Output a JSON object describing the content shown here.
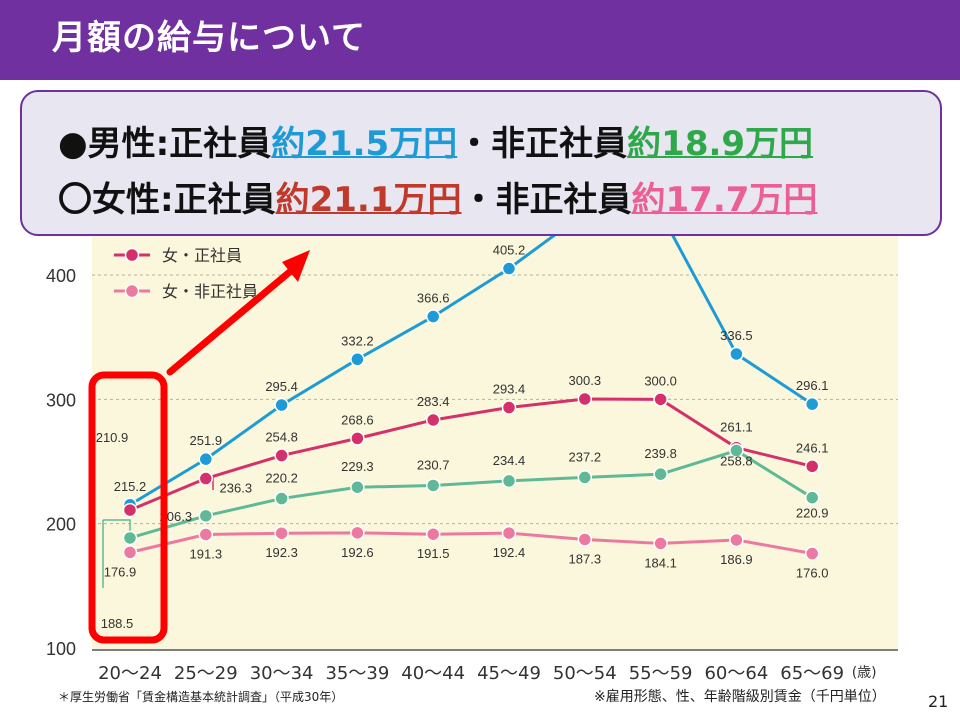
{
  "slide": {
    "title": "月額の給与について",
    "page_number": "21",
    "source_note": "＊厚生労働省「賃金構造基本統計調査」（平成30年）",
    "unit_note": "※雇用形態、性、年齢階級別賃金（千円単位）"
  },
  "callout": {
    "line1": {
      "prefix": "●男性:正社員",
      "value1": "約21.5万円",
      "middle": "・非正社員",
      "value2": "約18.9万円"
    },
    "line2": {
      "prefix": "〇女性:正社員",
      "value1": "約21.1万円",
      "middle": "・非正社員",
      "value2": "約17.7万円"
    }
  },
  "colors": {
    "brand_purple": "#7030A0",
    "male_regular": "#1E9BD7",
    "male_nonregular": "#5FB996",
    "female_regular": "#D4306A",
    "female_nonregular": "#EC7AA0",
    "callout_male_regular_text": "#1E9BD7",
    "callout_male_nonregular_text": "#2EA84A",
    "callout_female_regular_text": "#C0392B",
    "callout_female_nonregular_text": "#EC5F94",
    "highlight_red": "#FF0000",
    "plot_background": "#FBF7DC"
  },
  "chart_data": {
    "type": "line",
    "categories": [
      "20〜24",
      "25〜29",
      "30〜34",
      "35〜39",
      "40〜44",
      "45〜49",
      "50〜54",
      "55〜59",
      "60〜64",
      "65〜69"
    ],
    "x_unit": "(歳)",
    "ylim": [
      100,
      450
    ],
    "yticks": [
      100,
      200,
      300,
      400
    ],
    "grid": true,
    "legend_position": "top-left",
    "series": [
      {
        "name": "",
        "color": "#1E9BD7",
        "values": [
          215.2,
          251.9,
          295.4,
          332.2,
          366.6,
          405.2,
          450.0,
          450.0,
          336.5,
          296.1
        ],
        "labels": [
          "215.2",
          "251.9",
          "295.4",
          "332.2",
          "366.6",
          "405.2",
          "",
          "",
          "336.5",
          "296.1"
        ]
      },
      {
        "name": "女・正社員",
        "color": "#D4306A",
        "values": [
          210.9,
          236.3,
          254.8,
          268.6,
          283.4,
          293.4,
          300.3,
          300.0,
          261.1,
          246.1
        ],
        "labels": [
          "210.9",
          "236.3",
          "254.8",
          "268.6",
          "283.4",
          "293.4",
          "300.3",
          "300.0",
          "261.1",
          "246.1"
        ]
      },
      {
        "name": "",
        "color": "#5FB996",
        "values": [
          188.5,
          206.3,
          220.2,
          229.3,
          230.7,
          234.4,
          237.2,
          239.8,
          258.8,
          220.9
        ],
        "labels": [
          "188.5",
          "206.3",
          "220.2",
          "229.3",
          "230.7",
          "234.4",
          "237.2",
          "239.8",
          "258.8",
          "220.9"
        ]
      },
      {
        "name": "女・非正社員",
        "color": "#EC7AA0",
        "values": [
          176.9,
          191.3,
          192.3,
          192.6,
          191.5,
          192.4,
          187.3,
          184.1,
          186.9,
          176.0
        ],
        "labels": [
          "176.9",
          "191.3",
          "192.3",
          "192.6",
          "191.5",
          "192.4",
          "187.3",
          "184.1",
          "186.9",
          "176.0"
        ]
      }
    ]
  }
}
